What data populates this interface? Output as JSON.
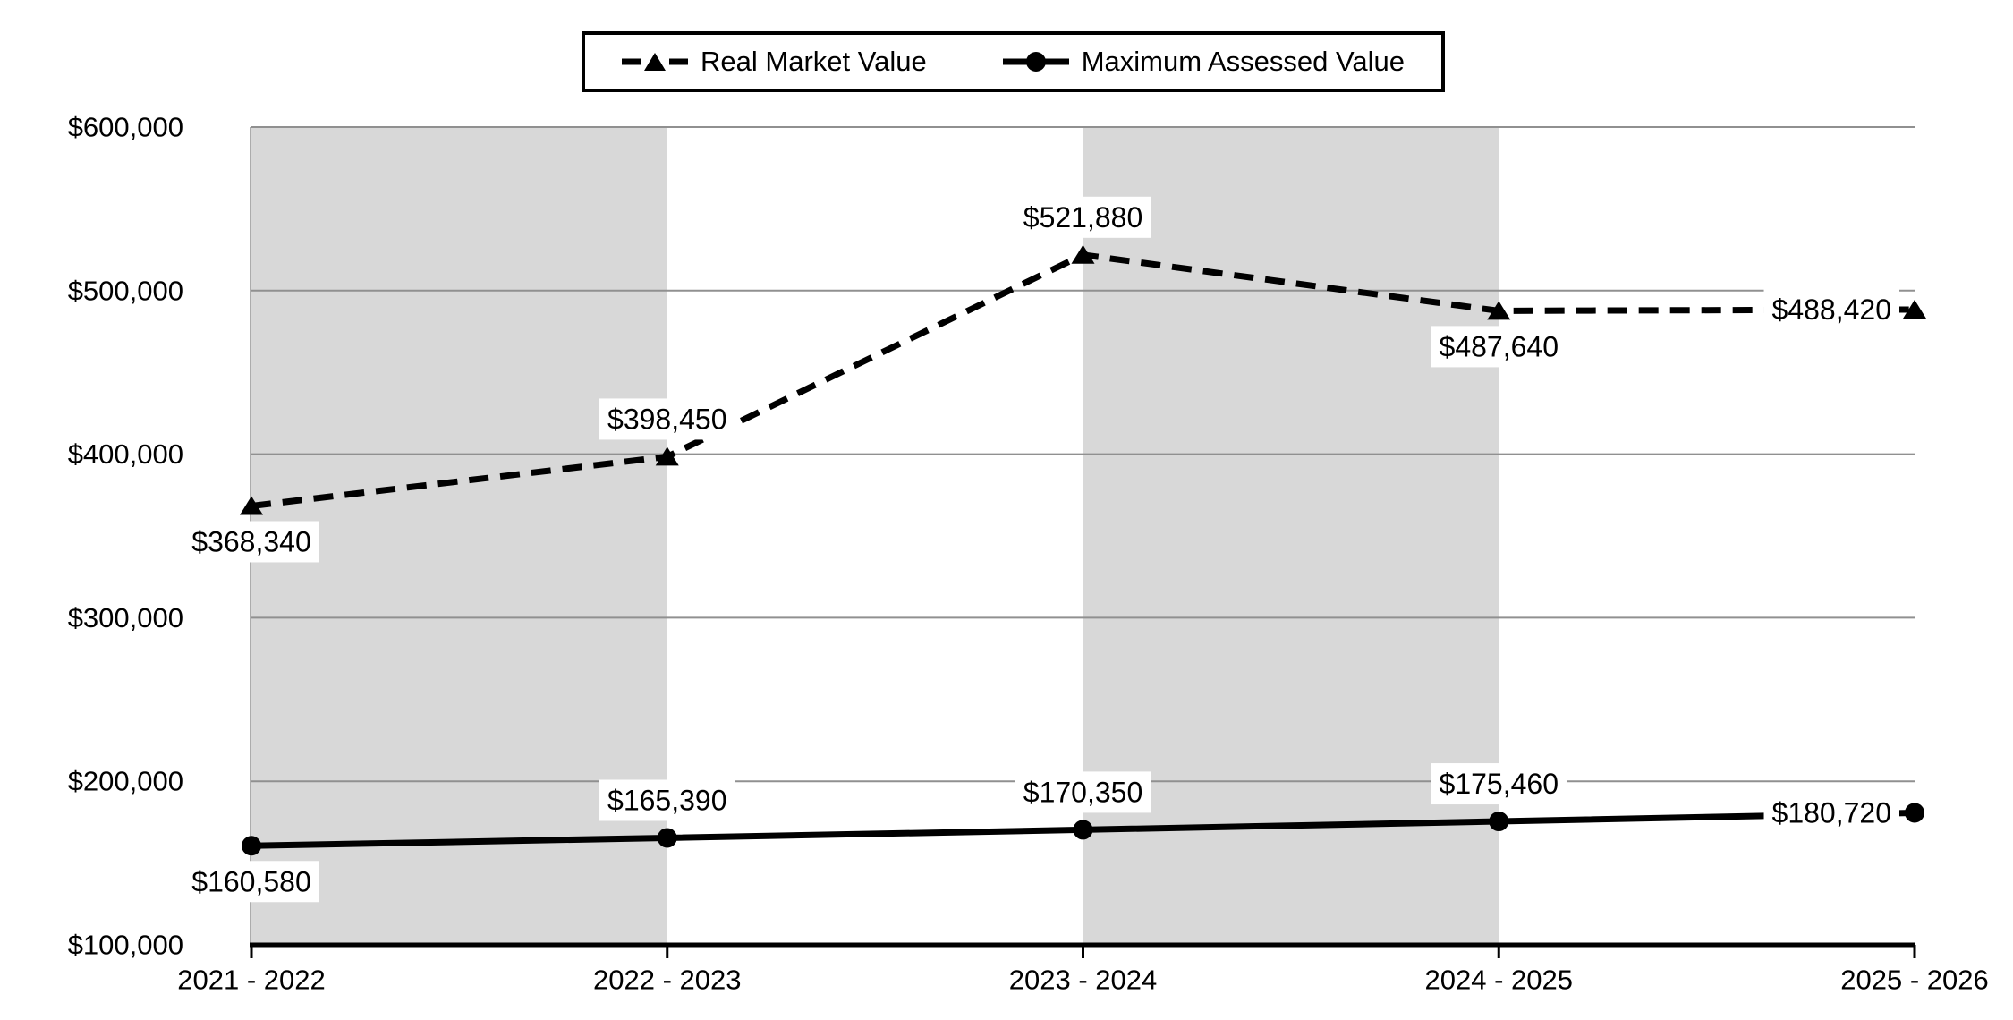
{
  "chart_data": {
    "type": "line",
    "title": "",
    "xlabel": "",
    "ylabel": "",
    "categories": [
      "2021 - 2022",
      "2022 - 2023",
      "2023 - 2024",
      "2024 - 2025",
      "2025 - 2026"
    ],
    "series": [
      {
        "name": "Real Market Value",
        "line_style": "dashed",
        "marker": "triangle",
        "values": [
          368340,
          398450,
          521880,
          487640,
          488420
        ],
        "labels": [
          "$368,340",
          "$398,450",
          "$521,880",
          "$487,640",
          "$488,420"
        ],
        "label_positions": [
          "below",
          "above",
          "above",
          "below",
          "left"
        ]
      },
      {
        "name": "Maximum Assessed Value",
        "line_style": "solid",
        "marker": "circle",
        "values": [
          160580,
          165390,
          170350,
          175460,
          180720
        ],
        "labels": [
          "$160,580",
          "$165,390",
          "$170,350",
          "$175,460",
          "$180,720"
        ],
        "label_positions": [
          "below",
          "above",
          "above",
          "above",
          "left"
        ]
      }
    ],
    "y_axis": {
      "min": 100000,
      "max": 600000,
      "step": 100000,
      "tick_labels": [
        "$100,000",
        "$200,000",
        "$300,000",
        "$400,000",
        "$500,000",
        "$600,000"
      ]
    },
    "legend": {
      "position": "top",
      "entries": [
        "Real Market Value",
        "Maximum Assessed Value"
      ]
    },
    "grid": true,
    "plot_bands": {
      "type": "alternating-vertical",
      "colors": [
        "#d8d8d8",
        "#ffffff"
      ]
    },
    "colors": {
      "line": "#000000",
      "text": "#000000",
      "gridline": "#909090",
      "band": "#d8d8d8",
      "background": "#ffffff",
      "label_background": "#ffffff"
    }
  }
}
